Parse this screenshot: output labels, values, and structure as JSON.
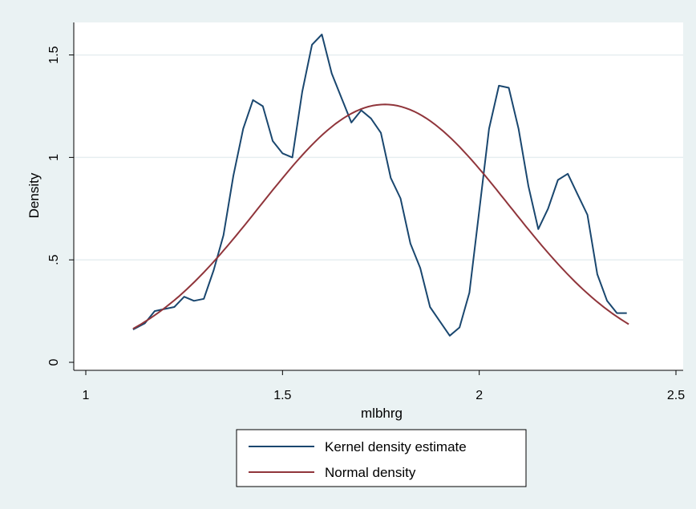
{
  "chart_data": {
    "type": "line",
    "xlabel": "mlbhrg",
    "ylabel": "Density",
    "xlim": [
      1,
      2.5
    ],
    "ylim": [
      0,
      1.6
    ],
    "x_ticks": [
      {
        "value": 1,
        "label": "1"
      },
      {
        "value": 1.5,
        "label": "1.5"
      },
      {
        "value": 2,
        "label": "2"
      },
      {
        "value": 2.5,
        "label": "2.5"
      }
    ],
    "y_ticks": [
      {
        "value": 0,
        "label": "0"
      },
      {
        "value": 0.5,
        "label": ".5"
      },
      {
        "value": 1,
        "label": "1"
      },
      {
        "value": 1.5,
        "label": "1.5"
      }
    ],
    "grid": "horizontal",
    "legend_position": "bottom",
    "series": [
      {
        "name": "Kernel density estimate",
        "color": "#1a476f",
        "x": [
          1.12,
          1.15,
          1.175,
          1.2,
          1.225,
          1.25,
          1.275,
          1.3,
          1.325,
          1.35,
          1.375,
          1.4,
          1.425,
          1.45,
          1.475,
          1.5,
          1.525,
          1.55,
          1.575,
          1.6,
          1.625,
          1.65,
          1.675,
          1.7,
          1.725,
          1.75,
          1.775,
          1.8,
          1.825,
          1.85,
          1.875,
          1.9,
          1.925,
          1.95,
          1.975,
          2.0,
          2.025,
          2.05,
          2.075,
          2.1,
          2.125,
          2.15,
          2.175,
          2.2,
          2.225,
          2.25,
          2.275,
          2.3,
          2.325,
          2.35,
          2.375
        ],
        "y": [
          0.16,
          0.19,
          0.25,
          0.26,
          0.27,
          0.32,
          0.3,
          0.31,
          0.45,
          0.62,
          0.91,
          1.14,
          1.28,
          1.25,
          1.08,
          1.02,
          1.0,
          1.32,
          1.55,
          1.6,
          1.41,
          1.29,
          1.17,
          1.23,
          1.19,
          1.12,
          0.9,
          0.8,
          0.58,
          0.46,
          0.27,
          0.2,
          0.13,
          0.17,
          0.34,
          0.74,
          1.14,
          1.35,
          1.34,
          1.14,
          0.86,
          0.65,
          0.75,
          0.89,
          0.92,
          0.82,
          0.72,
          0.43,
          0.3,
          0.24,
          0.24
        ]
      },
      {
        "name": "Normal density",
        "color": "#90353b",
        "mean": 1.76,
        "sd": 0.317,
        "x_range": [
          1.12,
          2.38
        ]
      }
    ]
  }
}
